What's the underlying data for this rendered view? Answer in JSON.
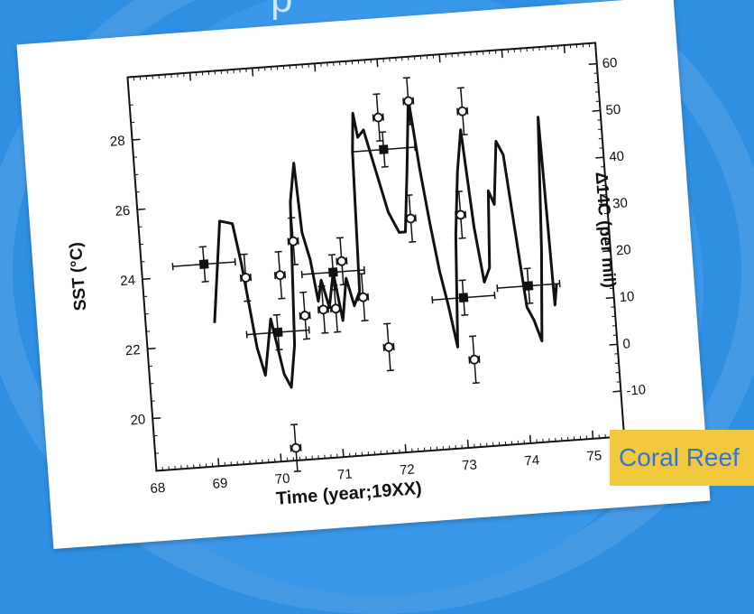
{
  "slide": {
    "title_fragment": "p",
    "caption": "Coral Reef"
  },
  "chart_data": {
    "type": "line",
    "xlabel": "Time (year;19XX)",
    "ylabel": "SST (°C)",
    "ylabel_right": "Δ14C (per mil)",
    "xlim": [
      68,
      75.5
    ],
    "ylim": [
      18.5,
      29.8
    ],
    "ylim_right": [
      -10,
      60
    ],
    "x_ticks": [
      "68",
      "69",
      "70",
      "71",
      "72",
      "73",
      "74",
      "75"
    ],
    "y_ticks": [
      "20",
      "22",
      "24",
      "26",
      "28"
    ],
    "y_ticks_right": [
      "-10",
      "0",
      "10",
      "20",
      "30",
      "40",
      "50",
      "60"
    ],
    "series": [
      {
        "style": "line",
        "axis": "left",
        "x": [
          69.1,
          69.3,
          69.5,
          69.6,
          69.75,
          69.85,
          70.0,
          70.15,
          70.25,
          70.35,
          70.45,
          70.55,
          70.6,
          70.7,
          70.78,
          70.85,
          70.95,
          71.05,
          71.15,
          71.25,
          71.35,
          71.45,
          71.5,
          71.55,
          71.6,
          71.7,
          71.85,
          72.0,
          72.15,
          72.25,
          72.35,
          72.45,
          72.55,
          72.65,
          72.75,
          72.85,
          72.95,
          73.05,
          73.15,
          73.25,
          73.35,
          73.45,
          73.55,
          73.62,
          73.7,
          73.8,
          73.9,
          74.0,
          74.1,
          74.2,
          74.3,
          74.4,
          74.5,
          74.55,
          74.6
        ],
        "y": [
          22.6,
          25.5,
          25.4,
          24.2,
          21.8,
          21.0,
          22.6,
          21.0,
          20.6,
          21.8,
          25.9,
          27.0,
          25.0,
          24.2,
          23.0,
          23.6,
          22.8,
          23.8,
          22.4,
          23.6,
          22.8,
          23.2,
          27.2,
          28.3,
          27.6,
          27.8,
          26.6,
          25.4,
          24.8,
          24.8,
          26.6,
          28.6,
          26.6,
          25.0,
          23.6,
          22.6,
          21.4,
          24.6,
          26.4,
          27.6,
          24.8,
          23.2,
          23.6,
          25.8,
          25.4,
          27.2,
          26.8,
          24.6,
          22.4,
          22.0,
          21.4,
          24.0,
          27.8,
          22.4,
          23.0
        ]
      },
      {
        "style": "filled-square",
        "axis": "left",
        "x": [
          69.0,
          70.1,
          71.05,
          72.0,
          73.1,
          74.15
        ],
        "y": [
          24.3,
          22.2,
          23.8,
          27.2,
          22.8,
          23.0
        ],
        "xerr": [
          0.5,
          0.5,
          0.5,
          0.5,
          0.5,
          0.5
        ],
        "yerr": [
          0.5,
          0.5,
          0.5,
          0.5,
          0.5,
          0.5
        ]
      },
      {
        "style": "open-circle",
        "axis": "right",
        "x": [
          69.65,
          70.2,
          70.25,
          70.45,
          70.55,
          70.85,
          71.05,
          71.2,
          71.5,
          71.85,
          71.95,
          72.35,
          72.45,
          73.15,
          73.2,
          73.3
        ],
        "y": [
          20,
          20,
          -17,
          27,
          11,
          12,
          12,
          22,
          14,
          3,
          52,
          30,
          55,
          30,
          -1,
          52
        ],
        "yerr": [
          5,
          5,
          5,
          5,
          5,
          5,
          5,
          5,
          5,
          5,
          5,
          5,
          5,
          5,
          5,
          5
        ]
      }
    ]
  }
}
